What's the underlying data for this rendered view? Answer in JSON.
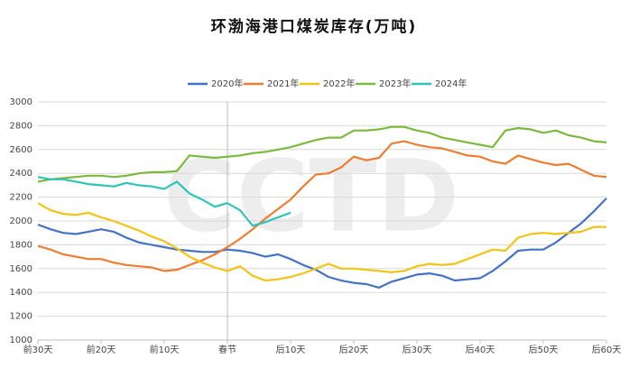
{
  "chart_data": {
    "type": "line",
    "title": "环渤海港口煤炭库存(万吨)",
    "watermark": "CCTD",
    "categories": [
      "前30天",
      null,
      null,
      null,
      null,
      "前20天",
      null,
      null,
      null,
      null,
      "前10天",
      null,
      null,
      null,
      null,
      "春节",
      null,
      null,
      null,
      null,
      "后10天",
      null,
      null,
      null,
      null,
      "后20天",
      null,
      null,
      null,
      null,
      "后30天",
      null,
      null,
      null,
      null,
      "后40天",
      null,
      null,
      null,
      null,
      "后50天",
      null,
      null,
      null,
      null,
      "后60天"
    ],
    "series": [
      {
        "name": "2020年",
        "color": "#4472c4",
        "values": [
          1970,
          1930,
          1900,
          1890,
          1910,
          1930,
          1910,
          1860,
          1820,
          1800,
          1780,
          1760,
          1750,
          1740,
          1740,
          1760,
          1750,
          1730,
          1700,
          1720,
          1680,
          1630,
          1590,
          1530,
          1500,
          1480,
          1470,
          1440,
          1490,
          1520,
          1550,
          1560,
          1540,
          1500,
          1510,
          1520,
          1580,
          1660,
          1750,
          1760,
          1760,
          1820,
          1900,
          1980,
          2080,
          2190
        ]
      },
      {
        "name": "2021年",
        "color": "#ed7d31",
        "values": [
          1790,
          1760,
          1720,
          1700,
          1680,
          1680,
          1650,
          1630,
          1620,
          1610,
          1580,
          1590,
          1630,
          1670,
          1720,
          1780,
          1850,
          1930,
          2020,
          2100,
          2180,
          2290,
          2390,
          2400,
          2450,
          2540,
          2510,
          2530,
          2650,
          2670,
          2640,
          2620,
          2610,
          2580,
          2550,
          2540,
          2500,
          2480,
          2550,
          2520,
          2490,
          2470,
          2480,
          2430,
          2380,
          2370
        ]
      },
      {
        "name": "2022年",
        "color": "#f2c314",
        "values": [
          2150,
          2090,
          2060,
          2050,
          2070,
          2030,
          2000,
          1960,
          1920,
          1870,
          1830,
          1770,
          1700,
          1650,
          1610,
          1580,
          1620,
          1540,
          1500,
          1510,
          1530,
          1560,
          1600,
          1640,
          1600,
          1600,
          1590,
          1580,
          1570,
          1580,
          1620,
          1640,
          1630,
          1640,
          1680,
          1720,
          1760,
          1750,
          1860,
          1890,
          1900,
          1890,
          1900,
          1910,
          1950,
          1950
        ]
      },
      {
        "name": "2023年",
        "color": "#7cba3d",
        "values": [
          2330,
          2350,
          2360,
          2370,
          2380,
          2380,
          2370,
          2380,
          2400,
          2410,
          2410,
          2420,
          2550,
          2540,
          2530,
          2540,
          2550,
          2570,
          2580,
          2600,
          2620,
          2650,
          2680,
          2700,
          2700,
          2760,
          2760,
          2770,
          2790,
          2790,
          2760,
          2740,
          2700,
          2680,
          2660,
          2640,
          2620,
          2760,
          2780,
          2770,
          2740,
          2760,
          2720,
          2700,
          2670,
          2660
        ]
      },
      {
        "name": "2024年",
        "color": "#2ec4b6",
        "values": [
          2370,
          2350,
          2350,
          2330,
          2310,
          2300,
          2290,
          2320,
          2300,
          2290,
          2270,
          2330,
          2230,
          2180,
          2120,
          2150,
          2090,
          1960,
          1990,
          2030,
          2070,
          null,
          null,
          null,
          null,
          null,
          null,
          null,
          null,
          null,
          null,
          null,
          null,
          null,
          null,
          null,
          null,
          null,
          null,
          null,
          null,
          null,
          null,
          null,
          null,
          null
        ]
      }
    ],
    "ylim": [
      1000,
      3000
    ],
    "yticks": [
      1000,
      1200,
      1400,
      1600,
      1800,
      2000,
      2200,
      2400,
      2600,
      2800,
      3000
    ],
    "grid": true
  }
}
